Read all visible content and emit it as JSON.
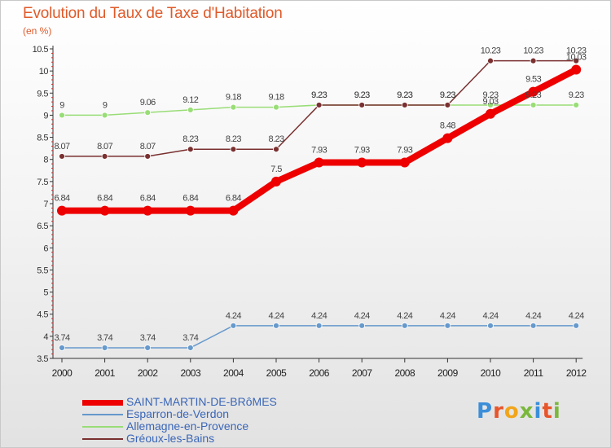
{
  "chart_data": {
    "type": "line",
    "title": "Evolution du Taux de Taxe d'Habitation",
    "subtitle": "(en %)",
    "x": [
      "2000",
      "2001",
      "2002",
      "2003",
      "2004",
      "2005",
      "2006",
      "2007",
      "2008",
      "2009",
      "2010",
      "2011",
      "2012"
    ],
    "ylim": [
      3.5,
      10.5
    ],
    "yticks": [
      "3.5",
      "4",
      "4.5",
      "5",
      "5.5",
      "6",
      "6.5",
      "7",
      "7.5",
      "8",
      "8.5",
      "9",
      "9.5",
      "10",
      "10.5"
    ],
    "grid": false,
    "legend_position": "bottom-left",
    "series": [
      {
        "name": "SAINT-MARTIN-DE-BRôMES",
        "color": "#ee0000",
        "values": [
          6.84,
          6.84,
          6.84,
          6.84,
          6.84,
          7.5,
          7.93,
          7.93,
          7.93,
          8.48,
          9.03,
          9.53,
          10.03
        ],
        "labels": [
          "6.84",
          "6.84",
          "6.84",
          "6.84",
          "6.84",
          "7.5",
          "7.93",
          "7.93",
          "7.93",
          "8.48",
          "9.03",
          "9.53",
          "10.03"
        ]
      },
      {
        "name": "Esparron-de-Verdon",
        "color": "#6699cc",
        "values": [
          3.74,
          3.74,
          3.74,
          3.74,
          4.24,
          4.24,
          4.24,
          4.24,
          4.24,
          4.24,
          4.24,
          4.24,
          4.24
        ],
        "labels": [
          "3.74",
          "3.74",
          "3.74",
          "3.74",
          "4.24",
          "4.24",
          "4.24",
          "4.24",
          "4.24",
          "4.24",
          "4.24",
          "4.24",
          "4.24"
        ]
      },
      {
        "name": "Allemagne-en-Provence",
        "color": "#99dd77",
        "values": [
          9,
          9,
          9.06,
          9.12,
          9.18,
          9.18,
          9.23,
          9.23,
          9.23,
          9.23,
          9.23,
          9.23,
          9.23
        ],
        "labels": [
          "9",
          "9",
          "9.06",
          "9.12",
          "9.18",
          "9.18",
          "9.23",
          "9.23",
          "9.23",
          "9.23",
          "9.23",
          "9.23",
          "9.23"
        ]
      },
      {
        "name": "Gréoux-les-Bains",
        "color": "#7a3030",
        "values": [
          8.07,
          8.07,
          8.07,
          8.23,
          8.23,
          8.23,
          9.23,
          9.23,
          9.23,
          9.23,
          10.23,
          10.23,
          10.23
        ],
        "labels": [
          "8.07",
          "8.07",
          "8.07",
          "8.23",
          "8.23",
          "8.23",
          "9.23",
          "9.23",
          "9.23",
          "9.23",
          "10.23",
          "10.23",
          "10.23"
        ]
      }
    ]
  },
  "legend": [
    {
      "label": "SAINT-MARTIN-DE-BRôMES",
      "color": "#ee0000",
      "thickness": 7
    },
    {
      "label": "Esparron-de-Verdon",
      "color": "#6699cc",
      "thickness": 2
    },
    {
      "label": "Allemagne-en-Provence",
      "color": "#99dd77",
      "thickness": 2
    },
    {
      "label": "Gréoux-les-Bains",
      "color": "#7a3030",
      "thickness": 2
    }
  ],
  "brand": {
    "text": "Proxiti",
    "letter_colors": [
      "#3b8fd9",
      "#e8552b",
      "#f2a51a",
      "#7ab83c",
      "#3b8fd9",
      "#e8552b",
      "#7ab83c"
    ]
  }
}
